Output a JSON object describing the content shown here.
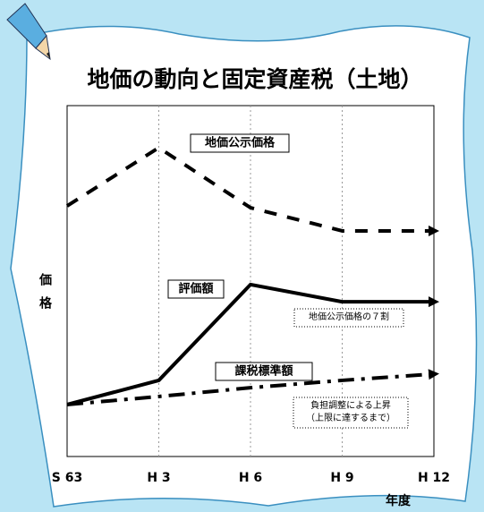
{
  "chart_data": {
    "type": "line",
    "title": "地価の動向と固定資産税（土地）",
    "y_label": "価格",
    "x_label": "年度",
    "categories": [
      "S 63",
      "H 3",
      "H 6",
      "H 9",
      "H 12"
    ],
    "ylim": [
      0,
      100
    ],
    "series": [
      {
        "name": "地価公示価格",
        "color": "#000000",
        "dash": "dashed",
        "values": [
          71.4,
          88,
          70.9,
          64.3,
          64.3
        ]
      },
      {
        "name": "評価額",
        "color": "#000000",
        "dash": "solid",
        "values": [
          14.8,
          21.7,
          49,
          44.1,
          44.1
        ]
      },
      {
        "name": "課税標準額",
        "color": "#000000",
        "dash": "dashdot",
        "values": [
          14.8,
          17.1,
          19.6,
          21.7,
          23.5
        ]
      }
    ],
    "annotations": [
      [
        "地価公示価格の７割"
      ],
      [
        "負担調整による上昇",
        "（上限に達するまで）"
      ]
    ]
  }
}
